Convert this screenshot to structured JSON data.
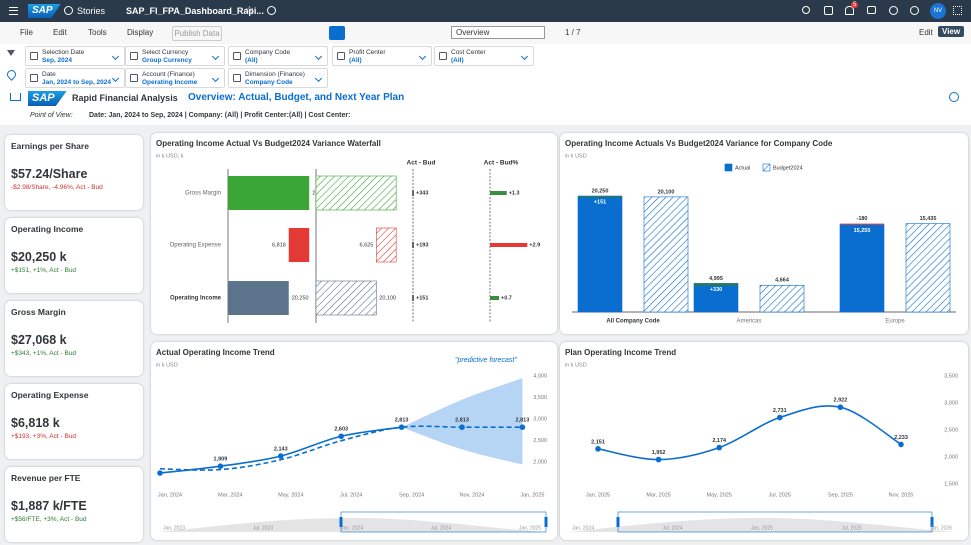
{
  "shell": {
    "logo": "SAP",
    "product": "Stories",
    "file": "SAP_FI_FPA_Dashboard_Rapi...",
    "notifications": "5",
    "avatar": "NV"
  },
  "toolbar": {
    "menus": [
      "File",
      "Edit",
      "Tools",
      "Display"
    ],
    "publish": "Publish Data",
    "page_select": "Overview",
    "page_counter": "1 / 7",
    "modes": [
      "Edit",
      "View"
    ]
  },
  "filters": [
    [
      {
        "label": "Selection Date",
        "value": "Sep, 2024"
      },
      {
        "label": "Select Currency",
        "value": "Group Currency"
      },
      {
        "label": "Company Code",
        "value": "(All)"
      },
      {
        "label": "Profit Center",
        "value": "(All)"
      },
      {
        "label": "Cost Center",
        "value": "(All)"
      }
    ],
    [
      {
        "label": "Date",
        "value": "Jan, 2024 to Sep, 2024"
      },
      {
        "label": "Account (Finance)",
        "value": "Operating Income"
      },
      {
        "label": "Dimension (Finance)",
        "value": "Company Code"
      }
    ]
  ],
  "header": {
    "logo": "SAP",
    "app": "Rapid Financial Analysis",
    "title": "Overview: Actual, Budget, and Next Year Plan",
    "pov_label": "Point of View:",
    "pov": "Date: Jan, 2024 to Sep, 2024 | Company: (All) | Profit Center:(All) | Cost Center:"
  },
  "kpis": [
    {
      "title": "Earnings per Share",
      "value": "$57.24/Share",
      "delta": "-$2.98/Share, -4.96%, Act - Bud",
      "delta_color": "#d32f2f"
    },
    {
      "title": "Operating Income",
      "value": "$20,250 k",
      "delta": "+$151, +1%, Act - Bud",
      "delta_color": "#2e7d32"
    },
    {
      "title": "Gross Margin",
      "value": "$27,068 k",
      "delta": "+$343, +1%, Act - Bud",
      "delta_color": "#2e7d32"
    },
    {
      "title": "Operating Expense",
      "value": "$6,818 k",
      "delta": "+$193, +3%, Act - Bud",
      "delta_color": "#d32f2f"
    },
    {
      "title": "Revenue per FTE",
      "value": "$1,887 k/FTE",
      "delta": "+$56/FTE, +3%, Act - Bud",
      "delta_color": "#2e7d32"
    }
  ],
  "chart_data": [
    {
      "type": "waterfall",
      "title": "Operating Income Actual Vs Budget2024 Variance Waterfall",
      "unit": "in k USD, k",
      "categories": [
        "Gross Margin",
        "Operating Expense",
        "Operating Income"
      ],
      "measures": [
        "total",
        "decrease",
        "total"
      ],
      "colors": [
        "#3aa635",
        "#e53935",
        "#5b738b"
      ],
      "actual": [
        27068,
        6818,
        20250
      ],
      "actual_labels": [
        "27,068",
        "6,818",
        "20,250"
      ],
      "budget": [
        26725,
        6625,
        20100
      ],
      "budget_labels": [
        null,
        "6,625",
        "20,100"
      ],
      "xlim": [
        0,
        28000
      ],
      "variance_title": "Act - Bud",
      "variance": [
        343,
        193,
        151
      ],
      "variance_labels": [
        "+343",
        "+193",
        "+151"
      ],
      "variance_pct_title": "Act - Bud%",
      "variance_pct": [
        1.3,
        2.9,
        0.7
      ],
      "variance_pct_labels": [
        "+1.3",
        "+2.9",
        "+0.7"
      ],
      "variance_pct_colors": [
        "#3c8d40",
        "#e53935",
        "#3c8d40"
      ],
      "variance_pct_xlim": [
        0,
        3.5
      ]
    },
    {
      "type": "bar",
      "title": "Operating Income Actuals Vs Budget2024 Variance for Company Code",
      "unit": "in k USD",
      "categories": [
        "All Company Code",
        "Americas",
        "Europe"
      ],
      "series": [
        {
          "name": "Actual",
          "color": "#0a6ed1",
          "values": [
            20250,
            4995,
            15255
          ],
          "value_labels": [
            "20,250",
            "4,995",
            "15,255"
          ]
        },
        {
          "name": "Budget2024",
          "color": "#0a6ed1",
          "pattern": "hatch",
          "values": [
            20100,
            4664,
            15435
          ],
          "value_labels": [
            "20,100",
            "4,664",
            "15,435"
          ]
        }
      ],
      "variance": [
        151,
        330,
        -180
      ],
      "variance_labels": [
        "+151",
        "+330",
        "-180"
      ],
      "ylim": [
        0,
        22000
      ],
      "legend": "top"
    },
    {
      "type": "line",
      "title": "Actual Operating Income Trend",
      "unit": "in k USD",
      "categories": [
        "Jan, 2024",
        "Mar, 2024",
        "May, 2024",
        "Jul, 2024",
        "Sep, 2024",
        "Nov, 2024",
        "Jan, 2025"
      ],
      "series": [
        {
          "color": "#0a6ed1",
          "style": "solid",
          "values": [
            1750,
            1909,
            2143,
            2603,
            2813,
            null,
            null
          ],
          "value_labels": [
            null,
            "1,909",
            "2,143",
            "2,603",
            "2,813",
            null,
            null
          ]
        },
        {
          "color": "#0a6ed1",
          "style": "dashed",
          "values": [
            1850,
            1830,
            2060,
            2500,
            2813,
            2813,
            2813
          ],
          "value_labels": [
            null,
            null,
            null,
            null,
            null,
            "2,813",
            "2,813"
          ]
        }
      ],
      "forecast_band": {
        "color": "#a9cdf2",
        "lower": [
          null,
          null,
          null,
          null,
          2813,
          2300,
          1950
        ],
        "upper": [
          null,
          null,
          null,
          null,
          2813,
          3450,
          3950
        ]
      },
      "annotation": "\"predictive forecast\"",
      "ylim": [
        1450,
        4000
      ],
      "yticks": [
        {
          "value": 2000,
          "label": "2,000"
        },
        {
          "value": 2500,
          "label": "2,500"
        },
        {
          "value": 3000,
          "label": "3,000"
        },
        {
          "value": 3500,
          "label": "3,500"
        },
        {
          "value": 4000,
          "label": "4,000"
        }
      ],
      "navigator": [
        "Jan, 2023",
        "Jul, 2023",
        "Jan, 2024",
        "Jul, 2024",
        "Jan, 2025"
      ]
    },
    {
      "type": "line",
      "title": "Plan Operating Income  Trend",
      "unit": "in k USD",
      "categories": [
        "Jan, 2025",
        "Mar, 2025",
        "May, 2025",
        "Jul, 2025",
        "Sep, 2025",
        "Nov, 2025"
      ],
      "series": [
        {
          "color": "#0a6ed1",
          "style": "solid",
          "values": [
            2151,
            1952,
            2174,
            2731,
            2922,
            2233
          ],
          "value_labels": [
            "2,151",
            "1,952",
            "2,174",
            "2,731",
            "2,922",
            "2,233"
          ]
        }
      ],
      "ylim": [
        1500,
        3500
      ],
      "yticks": [
        {
          "value": 1500,
          "label": "1,500"
        },
        {
          "value": 2000,
          "label": "2,000"
        },
        {
          "value": 2500,
          "label": "2,500"
        },
        {
          "value": 3000,
          "label": "3,000"
        },
        {
          "value": 3500,
          "label": "3,500"
        }
      ],
      "navigator": [
        "Jan, 2024",
        "Jul, 2024",
        "Jan, 2025",
        "Jul, 2025",
        "Jan, 2026"
      ]
    }
  ]
}
